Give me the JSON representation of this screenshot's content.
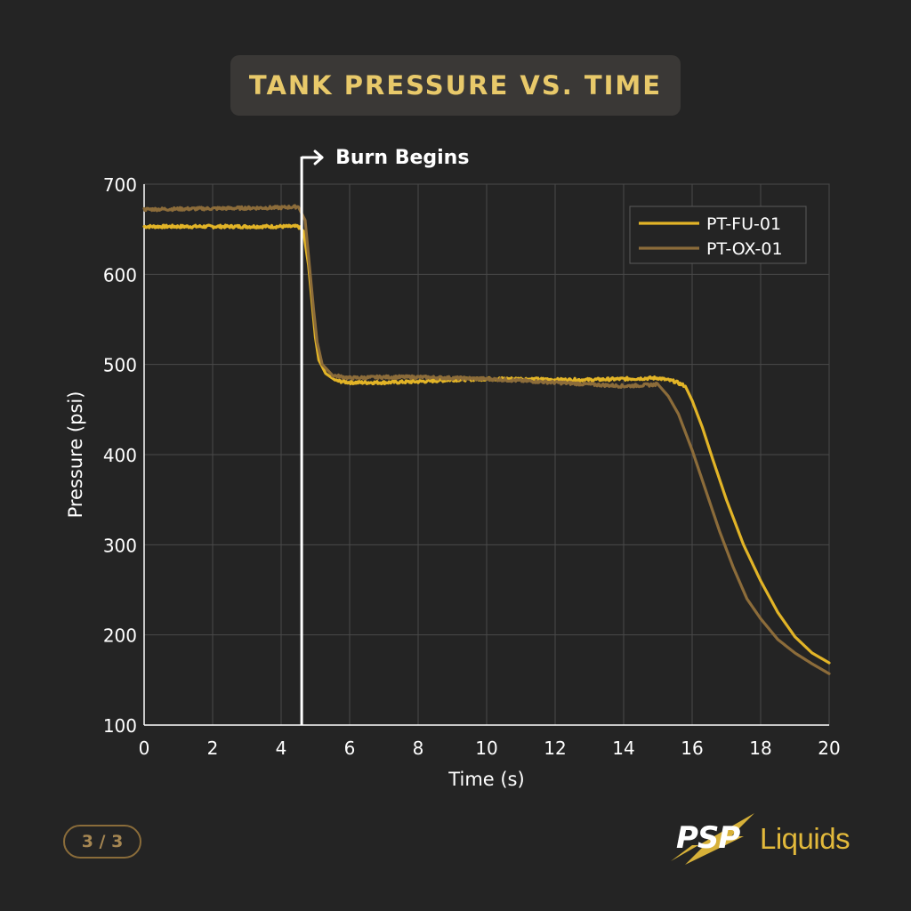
{
  "title": "TANK PRESSURE VS. TIME",
  "page_indicator": "3 / 3",
  "logo": {
    "brand": "PSP",
    "sub": "Liquids"
  },
  "colors": {
    "background": "#242424",
    "grid": "#4a4a4a",
    "fuel": "#e2b427",
    "ox": "#8c6c3a",
    "annotation": "#ffffff",
    "title": "#e8c96a"
  },
  "chart_data": {
    "type": "line",
    "title": "TANK PRESSURE VS. TIME",
    "xlabel": "Time (s)",
    "ylabel": "Pressure (psi)",
    "xlim": [
      0,
      20
    ],
    "ylim": [
      100,
      700
    ],
    "x_ticks": [
      0,
      2,
      4,
      6,
      8,
      10,
      12,
      14,
      16,
      18,
      20
    ],
    "y_ticks": [
      100,
      200,
      300,
      400,
      500,
      600,
      700
    ],
    "grid": true,
    "legend_position": "top-right",
    "annotation": {
      "label": "Burn Begins",
      "x": 4.6
    },
    "series": [
      {
        "name": "PT-FU-01",
        "color": "#e2b427",
        "points": [
          [
            0,
            653
          ],
          [
            2,
            653
          ],
          [
            4,
            653
          ],
          [
            4.5,
            653
          ],
          [
            4.65,
            648
          ],
          [
            4.8,
            610
          ],
          [
            4.9,
            570
          ],
          [
            5.0,
            530
          ],
          [
            5.1,
            505
          ],
          [
            5.3,
            490
          ],
          [
            5.6,
            482
          ],
          [
            6,
            480
          ],
          [
            7,
            480
          ],
          [
            8,
            481
          ],
          [
            9,
            483
          ],
          [
            10,
            484
          ],
          [
            11,
            484
          ],
          [
            12,
            483
          ],
          [
            13,
            483
          ],
          [
            14,
            484
          ],
          [
            15,
            485
          ],
          [
            15.5,
            481
          ],
          [
            15.8,
            476
          ],
          [
            16,
            460
          ],
          [
            16.3,
            430
          ],
          [
            16.6,
            395
          ],
          [
            17,
            350
          ],
          [
            17.5,
            300
          ],
          [
            18,
            260
          ],
          [
            18.5,
            225
          ],
          [
            19,
            198
          ],
          [
            19.5,
            180
          ],
          [
            20,
            169
          ]
        ]
      },
      {
        "name": "PT-OX-01",
        "color": "#8c6c3a",
        "points": [
          [
            0,
            672
          ],
          [
            2,
            673
          ],
          [
            4,
            674
          ],
          [
            4.5,
            675
          ],
          [
            4.7,
            660
          ],
          [
            4.85,
            600
          ],
          [
            4.95,
            560
          ],
          [
            5.05,
            525
          ],
          [
            5.2,
            500
          ],
          [
            5.5,
            488
          ],
          [
            6,
            485
          ],
          [
            7,
            486
          ],
          [
            8,
            486
          ],
          [
            9,
            485
          ],
          [
            10,
            484
          ],
          [
            11,
            482
          ],
          [
            12,
            480
          ],
          [
            13,
            478
          ],
          [
            14,
            476
          ],
          [
            14.6,
            477
          ],
          [
            15,
            478
          ],
          [
            15.3,
            465
          ],
          [
            15.6,
            445
          ],
          [
            16,
            405
          ],
          [
            16.4,
            360
          ],
          [
            16.8,
            315
          ],
          [
            17.2,
            275
          ],
          [
            17.6,
            240
          ],
          [
            18,
            218
          ],
          [
            18.5,
            195
          ],
          [
            19,
            180
          ],
          [
            19.5,
            168
          ],
          [
            20,
            157
          ]
        ]
      }
    ]
  }
}
